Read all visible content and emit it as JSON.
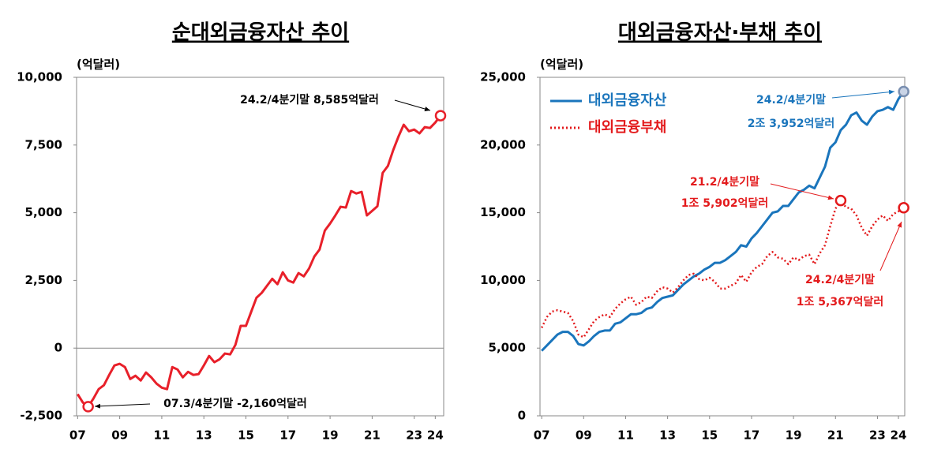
{
  "chart_data": [
    {
      "type": "line",
      "title": "순대외금융자산 추이",
      "y_label": "(억달러)",
      "x": [
        2007,
        2007.25,
        2007.5,
        2007.75,
        2008,
        2008.25,
        2008.5,
        2008.75,
        2009,
        2009.25,
        2009.5,
        2009.75,
        2010,
        2010.25,
        2010.5,
        2010.75,
        2011,
        2011.25,
        2011.5,
        2011.75,
        2012,
        2012.25,
        2012.5,
        2012.75,
        2013,
        2013.25,
        2013.5,
        2013.75,
        2014,
        2014.25,
        2014.5,
        2014.75,
        2015,
        2015.25,
        2015.5,
        2015.75,
        2016,
        2016.25,
        2016.5,
        2016.75,
        2017,
        2017.25,
        2017.5,
        2017.75,
        2018,
        2018.25,
        2018.5,
        2018.75,
        2019,
        2019.25,
        2019.5,
        2019.75,
        2020,
        2020.25,
        2020.5,
        2020.75,
        2021,
        2021.25,
        2021.5,
        2021.75,
        2022,
        2022.25,
        2022.5,
        2022.75,
        2023,
        2023.25,
        2023.5,
        2023.75,
        2024,
        2024.25
      ],
      "xlim": [
        2006.95,
        2024.4
      ],
      "xticks": [
        {
          "value": 2007,
          "label": "07"
        },
        {
          "value": 2009,
          "label": "09"
        },
        {
          "value": 2011,
          "label": "11"
        },
        {
          "value": 2013,
          "label": "13"
        },
        {
          "value": 2015,
          "label": "15"
        },
        {
          "value": 2017,
          "label": "17"
        },
        {
          "value": 2019,
          "label": "19"
        },
        {
          "value": 2021,
          "label": "21"
        },
        {
          "value": 2023,
          "label": "23"
        },
        {
          "value": 2024,
          "label": "24"
        }
      ],
      "ylim": [
        -2500,
        10000
      ],
      "yticks": [
        {
          "value": -2500,
          "label": "-2,500"
        },
        0,
        {
          "value": 2500,
          "label": "2,500"
        },
        {
          "value": 5000,
          "label": "5,000"
        },
        {
          "value": 7500,
          "label": "7,500"
        },
        {
          "value": 10000,
          "label": "10,000"
        }
      ],
      "grid": false,
      "zero_line": true,
      "series": [
        {
          "color": "#e8202a",
          "linestyle": "solid",
          "values": [
            -1700,
            -2010,
            -2160,
            -1865,
            -1515,
            -1370,
            -990,
            -640,
            -580,
            -700,
            -1140,
            -1020,
            -1195,
            -900,
            -1080,
            -1310,
            -1460,
            -1515,
            -700,
            -790,
            -1080,
            -875,
            -990,
            -960,
            -640,
            -290,
            -520,
            -410,
            -200,
            -230,
            120,
            820,
            820,
            1340,
            1860,
            2040,
            2300,
            2560,
            2360,
            2800,
            2500,
            2420,
            2770,
            2650,
            2940,
            3380,
            3640,
            4340,
            4600,
            4900,
            5220,
            5190,
            5800,
            5710,
            5770,
            4900,
            5070,
            5240,
            6470,
            6730,
            7310,
            7810,
            8250,
            8010,
            8070,
            7930,
            8160,
            8130,
            8330,
            8585
          ]
        }
      ],
      "annotations": [
        [
          "24.2/4분기말 8,585억달러"
        ],
        [
          "07.3/4분기말 -2,160억달러"
        ]
      ]
    },
    {
      "type": "line",
      "title": "대외금융자산·부채 추이",
      "y_label": "(억달러)",
      "x": [
        2007,
        2007.25,
        2007.5,
        2007.75,
        2008,
        2008.25,
        2008.5,
        2008.75,
        2009,
        2009.25,
        2009.5,
        2009.75,
        2010,
        2010.25,
        2010.5,
        2010.75,
        2011,
        2011.25,
        2011.5,
        2011.75,
        2012,
        2012.25,
        2012.5,
        2012.75,
        2013,
        2013.25,
        2013.5,
        2013.75,
        2014,
        2014.25,
        2014.5,
        2014.75,
        2015,
        2015.25,
        2015.5,
        2015.75,
        2016,
        2016.25,
        2016.5,
        2016.75,
        2017,
        2017.25,
        2017.5,
        2017.75,
        2018,
        2018.25,
        2018.5,
        2018.75,
        2019,
        2019.25,
        2019.5,
        2019.75,
        2020,
        2020.25,
        2020.5,
        2020.75,
        2021,
        2021.25,
        2021.5,
        2021.75,
        2022,
        2022.25,
        2022.5,
        2022.75,
        2023,
        2023.25,
        2023.5,
        2023.75,
        2024,
        2024.25
      ],
      "xlim": [
        2006.92,
        2024.3
      ],
      "xticks": [
        {
          "value": 2007,
          "label": "07"
        },
        {
          "value": 2009,
          "label": "09"
        },
        {
          "value": 2011,
          "label": "11"
        },
        {
          "value": 2013,
          "label": "13"
        },
        {
          "value": 2015,
          "label": "15"
        },
        {
          "value": 2017,
          "label": "17"
        },
        {
          "value": 2019,
          "label": "19"
        },
        {
          "value": 2021,
          "label": "21"
        },
        {
          "value": 2023,
          "label": "23"
        },
        {
          "value": 2024,
          "label": "24"
        }
      ],
      "ylim": [
        0,
        25000
      ],
      "yticks": [
        0,
        {
          "value": 5000,
          "label": "5,000"
        },
        {
          "value": 10000,
          "label": "10,000"
        },
        {
          "value": 15000,
          "label": "15,000"
        },
        {
          "value": 20000,
          "label": "20,000"
        },
        {
          "value": 25000,
          "label": "25,000"
        }
      ],
      "grid": false,
      "legend": "upper left",
      "series": [
        {
          "name": "대외금융자산",
          "color": "#1a75bc",
          "linestyle": "solid",
          "values": [
            4800,
            5200,
            5600,
            6000,
            6200,
            6200,
            5900,
            5300,
            5200,
            5500,
            5900,
            6200,
            6300,
            6300,
            6800,
            6900,
            7200,
            7500,
            7500,
            7600,
            7900,
            8000,
            8400,
            8700,
            8800,
            8900,
            9300,
            9700,
            10000,
            10300,
            10500,
            10800,
            11000,
            11300,
            11300,
            11500,
            11800,
            12100,
            12600,
            12500,
            13100,
            13500,
            14000,
            14500,
            15000,
            15100,
            15500,
            15500,
            16000,
            16500,
            16700,
            17000,
            16800,
            17600,
            18400,
            19800,
            20200,
            21100,
            21500,
            22200,
            22400,
            21800,
            21500,
            22100,
            22500,
            22600,
            22800,
            22600,
            23400,
            23952
          ]
        },
        {
          "name": "대외금융부채",
          "color": "#e31a1c",
          "linestyle": "dotted",
          "values": [
            6500,
            7300,
            7700,
            7800,
            7700,
            7600,
            7000,
            6000,
            5800,
            6400,
            7000,
            7300,
            7500,
            7300,
            7900,
            8300,
            8600,
            8800,
            8200,
            8400,
            8800,
            8700,
            9200,
            9500,
            9400,
            9100,
            9500,
            10000,
            10400,
            10500,
            10100,
            10000,
            10200,
            9900,
            9400,
            9400,
            9600,
            9800,
            10400,
            9900,
            10600,
            11000,
            11200,
            11800,
            12100,
            11700,
            11600,
            11200,
            11700,
            11500,
            11800,
            11900,
            11200,
            12000,
            12600,
            14000,
            15300,
            15902,
            15400,
            15300,
            14800,
            13900,
            13300,
            14000,
            14500,
            14800,
            14400,
            14900,
            15100,
            15367
          ]
        }
      ],
      "annotations": [
        [
          "24.2/4분기말",
          "2조 3,952억달러"
        ],
        [
          "21.2/4분기말",
          "1조 5,902억달러"
        ],
        [
          "24.2/4분기말",
          "1조 5,367억달러"
        ]
      ]
    }
  ]
}
